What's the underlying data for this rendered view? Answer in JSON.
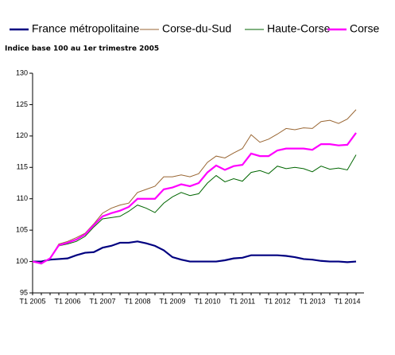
{
  "chart_data": {
    "type": "line",
    "subtitle": "Indice base 100 au 1er trimestre 2005",
    "categories": [
      "T1 2005",
      null,
      null,
      null,
      "T1 2006",
      null,
      null,
      null,
      "T1 2007",
      null,
      null,
      null,
      "T1 2008",
      null,
      null,
      null,
      "T1 2009",
      null,
      null,
      null,
      "T1 2010",
      null,
      null,
      null,
      "T1 2011",
      null,
      null,
      null,
      "T1 2012",
      null,
      null,
      null,
      "T1 2013",
      null,
      null,
      null,
      "T1 2014",
      null
    ],
    "series": [
      {
        "name": "France métropolitaine",
        "color": "#000080",
        "values": [
          100,
          100,
          100.3,
          100.4,
          100.5,
          101,
          101.4,
          101.5,
          102.2,
          102.5,
          103,
          103,
          103.2,
          102.9,
          102.5,
          101.8,
          100.7,
          100.3,
          100,
          100,
          100,
          100,
          100.2,
          100.5,
          100.6,
          101,
          101,
          101,
          101,
          100.9,
          100.7,
          100.4,
          100.3,
          100.1,
          100,
          100,
          99.9,
          100
        ]
      },
      {
        "name": "Corse-du-Sud",
        "color": "#996633",
        "values": [
          100,
          99.8,
          100.5,
          102.8,
          103.2,
          103.8,
          104.5,
          106,
          107.7,
          108.5,
          109,
          109.3,
          111,
          111.5,
          112,
          113.5,
          113.5,
          113.8,
          113.5,
          114,
          115.8,
          116.8,
          116.5,
          117.3,
          118,
          120.2,
          119,
          119.5,
          120.3,
          121.2,
          121,
          121.3,
          121.2,
          122.3,
          122.5,
          122,
          122.7,
          124.2
        ]
      },
      {
        "name": "Haute-Corse",
        "color": "#006600",
        "values": [
          100,
          99.6,
          100.5,
          102.5,
          102.8,
          103.2,
          104,
          105.5,
          106.8,
          107,
          107.2,
          108,
          109,
          108.5,
          107.8,
          109.3,
          110.3,
          111,
          110.5,
          110.8,
          112.5,
          113.7,
          112.7,
          113.2,
          112.8,
          114.2,
          114.5,
          114,
          115.2,
          114.8,
          115,
          114.8,
          114.3,
          115.2,
          114.7,
          114.9,
          114.6,
          117
        ]
      },
      {
        "name": "Corse",
        "color": "#ff00ff",
        "values": [
          100,
          99.7,
          100.5,
          102.6,
          103,
          103.5,
          104.3,
          105.8,
          107.2,
          107.7,
          108.1,
          108.7,
          110,
          110,
          110,
          111.5,
          111.8,
          112.3,
          112,
          112.5,
          114.2,
          115.3,
          114.6,
          115.2,
          115.4,
          117.2,
          116.8,
          116.8,
          117.7,
          118,
          118,
          118,
          117.8,
          118.7,
          118.7,
          118.5,
          118.6,
          120.5
        ]
      }
    ],
    "ylim": [
      95,
      130
    ],
    "yticks": [
      95,
      100,
      105,
      110,
      115,
      120,
      125,
      130
    ]
  }
}
